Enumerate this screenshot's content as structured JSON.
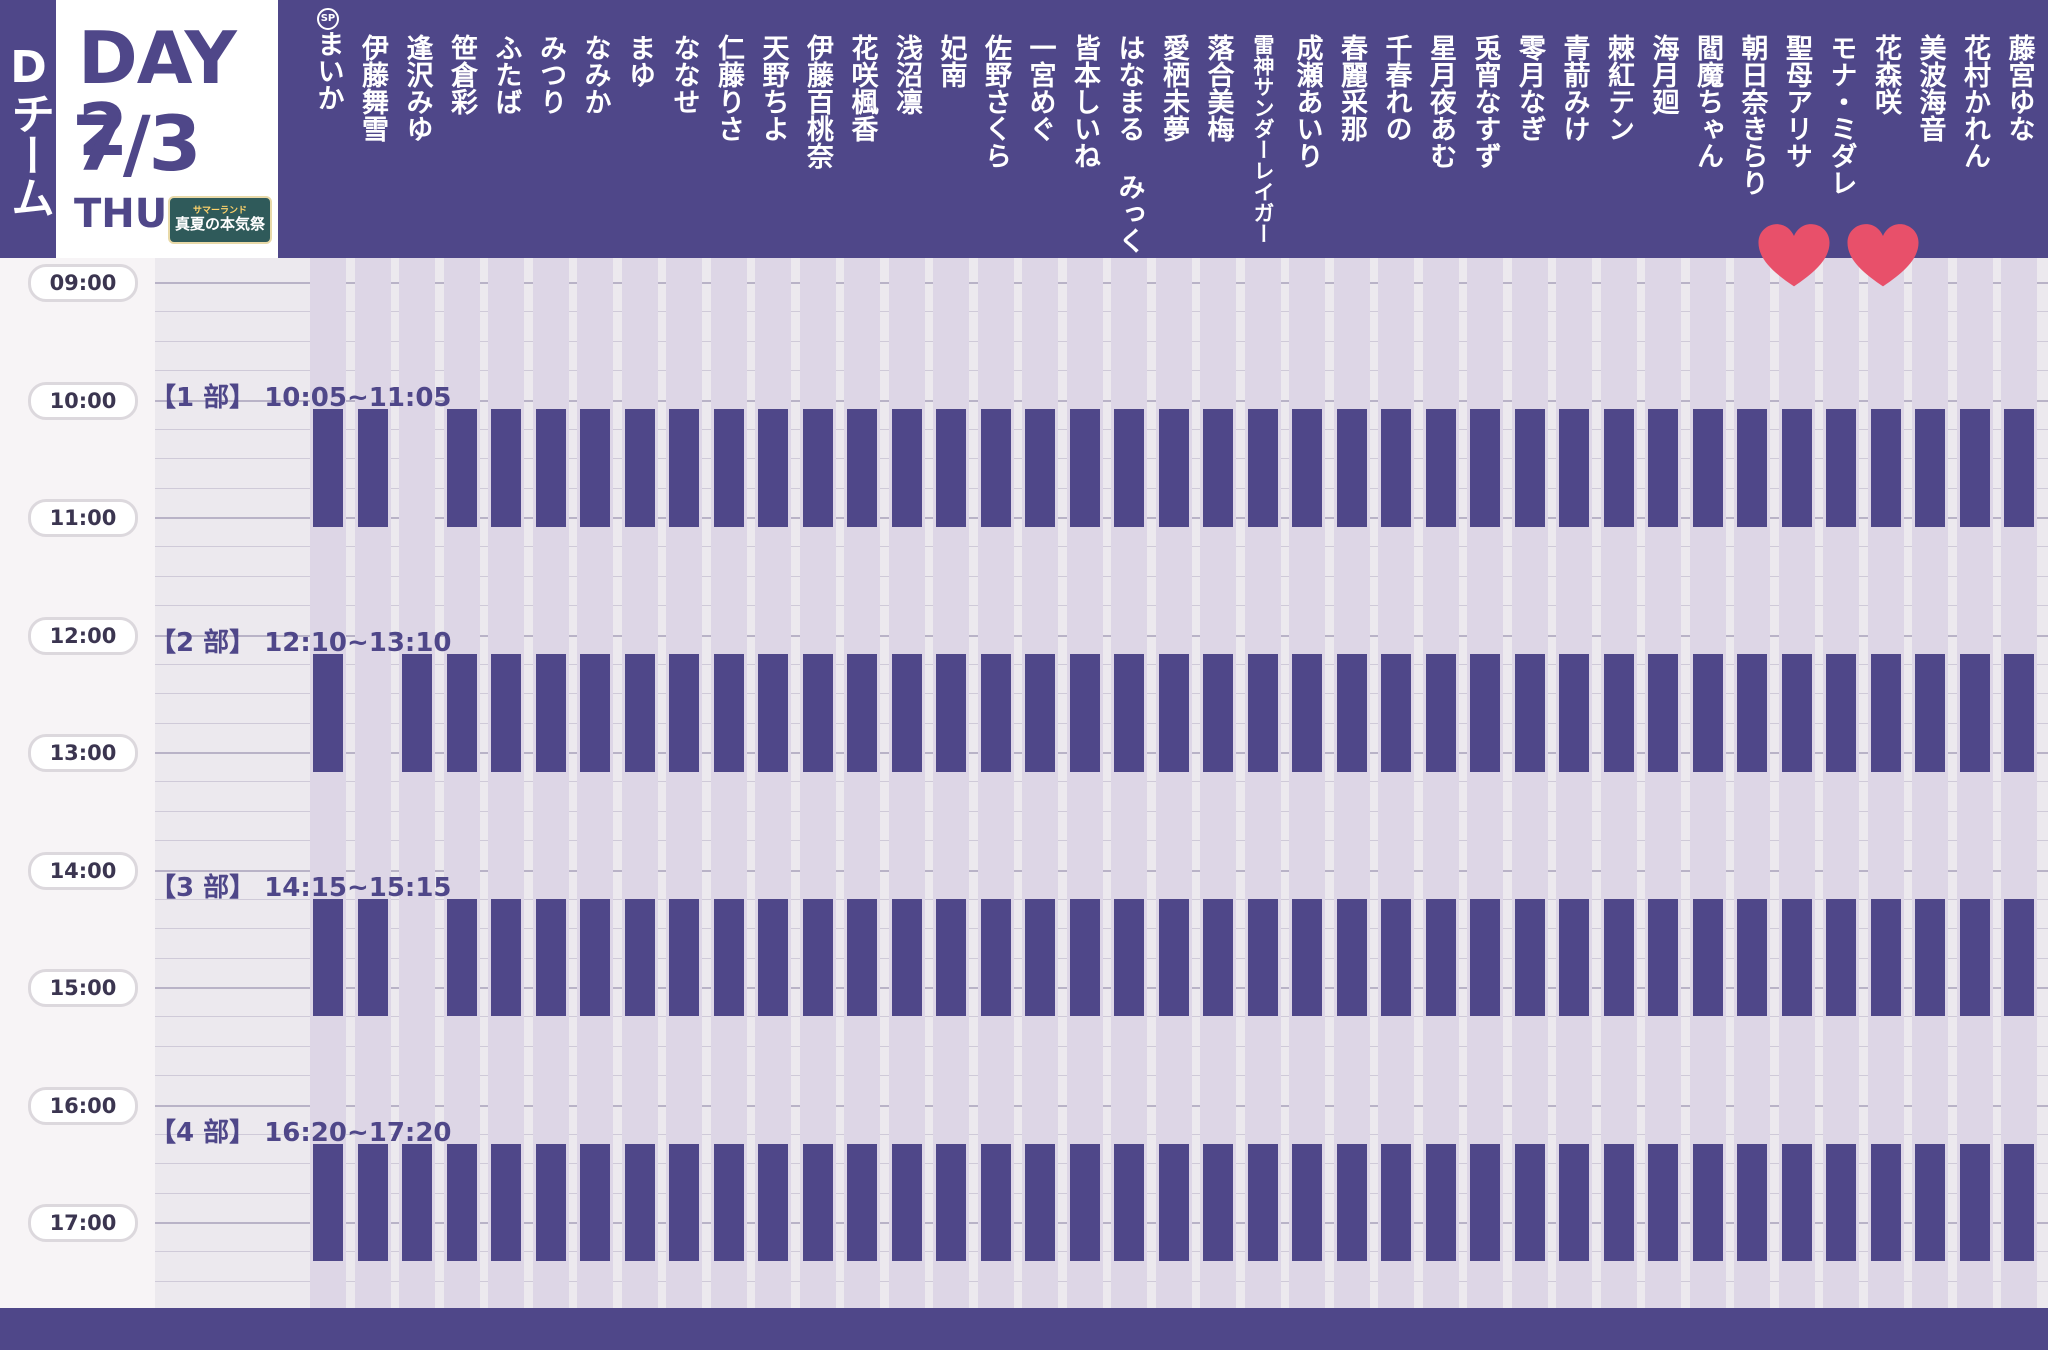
{
  "team": "Dチーム",
  "day": "DAY 2",
  "date": "7/3",
  "weekday": "THU",
  "event_logo": {
    "line1": "サマーランド",
    "line2": "真夏の本気祭"
  },
  "sp_mark": "SP",
  "colors": {
    "accent": "#4f4789",
    "stripe": "#ddd6e6",
    "background": "#ece9ee",
    "heart": "#e8506a"
  },
  "members": [
    "まいか",
    "伊藤舞雪",
    "逢沢みゆ",
    "笹倉彩",
    "ふたば",
    "みつり",
    "なみか",
    "まゆ",
    "ななせ",
    "仁藤りさ",
    "天野ちよ",
    "伊藤百桃奈",
    "花咲楓香",
    "浅沼凛",
    "妃南",
    "佐野さくら",
    "一宮めぐ",
    "皆本しいね",
    "はなまる みっく",
    "愛栖未夢",
    "落合美梅",
    "雷神サンダーレイガー",
    "成瀬あいり",
    "春麗采那",
    "千春れの",
    "星月夜あむ",
    "兎宵なすず",
    "零月なぎ",
    "青葥みけ",
    "棘紅テン",
    "海月廻",
    "閻魔ちゃん",
    "朝日奈きらり",
    "聖母アリサ",
    "モナ・ミダレ",
    "花森咲",
    "美波海音",
    "花村かれん",
    "藤宮ゆな"
  ],
  "times": [
    "09:00",
    "10:00",
    "11:00",
    "12:00",
    "13:00",
    "14:00",
    "15:00",
    "16:00",
    "17:00"
  ],
  "sessions": [
    {
      "label": "【1 部】 10:05~11:05",
      "absent": [
        2
      ]
    },
    {
      "label": "【2 部】 12:10~13:10",
      "absent": [
        1
      ]
    },
    {
      "label": "【3 部】 14:15~15:15",
      "absent": [
        2
      ]
    },
    {
      "label": "【4 部】 16:20~17:20",
      "absent": []
    }
  ],
  "hearts_on_members": [
    33,
    35
  ]
}
